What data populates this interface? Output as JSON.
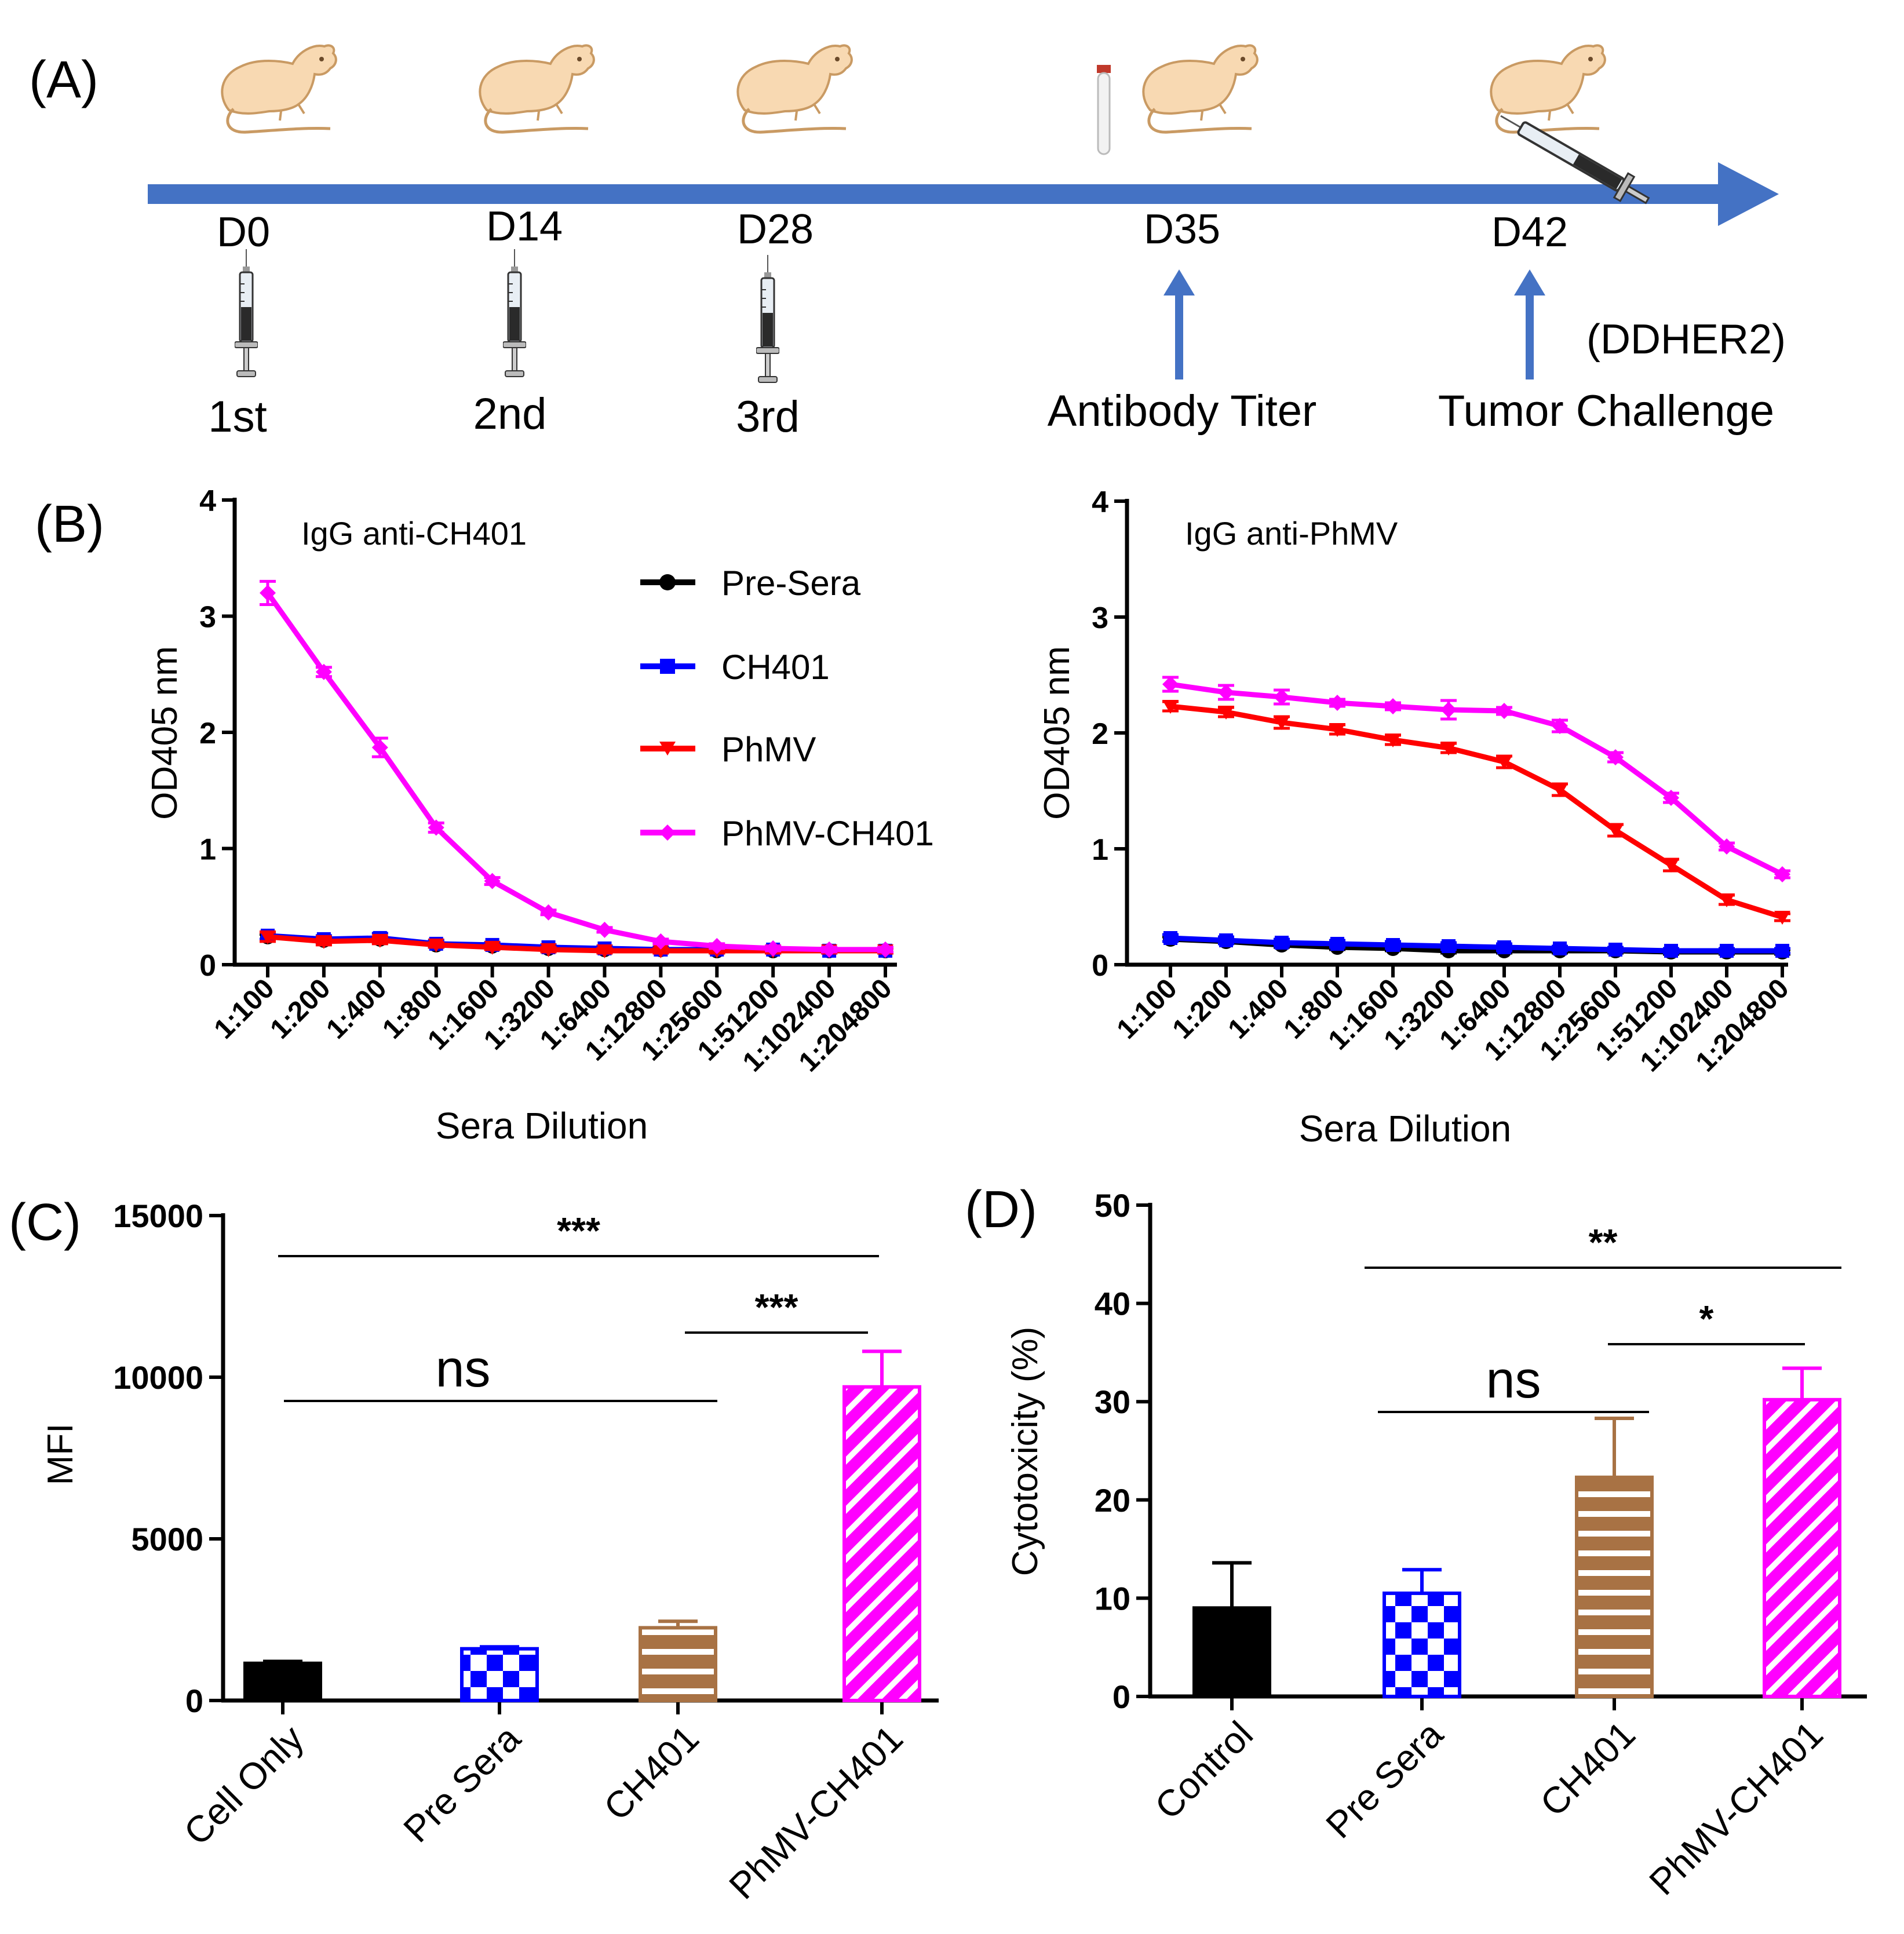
{
  "panel_a": {
    "label": "(A)",
    "days": [
      "D0",
      "D14",
      "D28",
      "D35",
      "D42"
    ],
    "doses": [
      "1st",
      "2nd",
      "3rd"
    ],
    "antibody_label": "Antibody Titer",
    "challenge_label": "Tumor Challenge",
    "challenge_model": "(DDHER2)"
  },
  "panel_b": {
    "label": "(B)",
    "legend": [
      "Pre-Sera",
      "CH401",
      "PhMV",
      "PhMV-CH401"
    ],
    "colors": {
      "Pre-Sera": "#000000",
      "CH401": "#0000ff",
      "PhMV": "#ff0000",
      "PhMV-CH401": "#ff00ff"
    }
  },
  "panel_c": {
    "label": "(C)"
  },
  "panel_d": {
    "label": "(D)"
  },
  "chart_data": [
    {
      "id": "b-left",
      "type": "line",
      "title": "IgG anti-CH401",
      "xlabel": "Sera Dilution",
      "ylabel": "OD405 nm",
      "ylim": [
        0,
        4
      ],
      "yticks": [
        "0",
        "1",
        "2",
        "3",
        "4"
      ],
      "categories": [
        "1:100",
        "1:200",
        "1:400",
        "1:800",
        "1:1600",
        "1:3200",
        "1:6400",
        "1:12800",
        "1:25600",
        "1:51200",
        "1:102400",
        "1:204800"
      ],
      "series": [
        {
          "name": "Pre-Sera",
          "values": [
            0.24,
            0.21,
            0.22,
            0.17,
            0.16,
            0.14,
            0.13,
            0.13,
            0.12,
            0.12,
            0.12,
            0.12
          ],
          "err": [
            0.02,
            0.02,
            0.02,
            0.02,
            0.02,
            0.02,
            0.02,
            0.02,
            0.02,
            0.02,
            0.02,
            0.02
          ]
        },
        {
          "name": "CH401",
          "values": [
            0.25,
            0.22,
            0.23,
            0.18,
            0.17,
            0.15,
            0.14,
            0.13,
            0.13,
            0.13,
            0.12,
            0.12
          ],
          "err": [
            0.03,
            0.03,
            0.04,
            0.03,
            0.02,
            0.02,
            0.02,
            0.02,
            0.02,
            0.02,
            0.02,
            0.02
          ]
        },
        {
          "name": "PhMV",
          "values": [
            0.24,
            0.2,
            0.21,
            0.17,
            0.15,
            0.13,
            0.12,
            0.12,
            0.12,
            0.12,
            0.12,
            0.12
          ],
          "err": [
            0.04,
            0.03,
            0.03,
            0.02,
            0.02,
            0.02,
            0.02,
            0.02,
            0.02,
            0.02,
            0.02,
            0.02
          ]
        },
        {
          "name": "PhMV-CH401",
          "values": [
            3.2,
            2.52,
            1.87,
            1.18,
            0.72,
            0.45,
            0.3,
            0.2,
            0.16,
            0.14,
            0.13,
            0.13
          ],
          "err": [
            0.1,
            0.04,
            0.08,
            0.04,
            0.03,
            0.02,
            0.02,
            0.02,
            0.02,
            0.02,
            0.02,
            0.02
          ]
        }
      ]
    },
    {
      "id": "b-right",
      "type": "line",
      "title": "IgG anti-PhMV",
      "xlabel": "Sera Dilution",
      "ylabel": "OD405 nm",
      "ylim": [
        0,
        4
      ],
      "yticks": [
        "0",
        "1",
        "2",
        "3",
        "4"
      ],
      "categories": [
        "1:100",
        "1:200",
        "1:400",
        "1:800",
        "1:1600",
        "1:3200",
        "1:6400",
        "1:12800",
        "1:25600",
        "1:51200",
        "1:102400",
        "1:204800"
      ],
      "series": [
        {
          "name": "Pre-Sera",
          "values": [
            0.22,
            0.2,
            0.17,
            0.15,
            0.14,
            0.12,
            0.12,
            0.12,
            0.12,
            0.11,
            0.11,
            0.11
          ],
          "err": [
            0.02,
            0.02,
            0.02,
            0.02,
            0.02,
            0.02,
            0.02,
            0.02,
            0.02,
            0.02,
            0.02,
            0.02
          ]
        },
        {
          "name": "CH401",
          "values": [
            0.23,
            0.21,
            0.19,
            0.18,
            0.17,
            0.16,
            0.15,
            0.14,
            0.13,
            0.12,
            0.12,
            0.12
          ],
          "err": [
            0.03,
            0.03,
            0.03,
            0.03,
            0.03,
            0.03,
            0.03,
            0.02,
            0.02,
            0.02,
            0.02,
            0.02
          ]
        },
        {
          "name": "PhMV",
          "values": [
            2.23,
            2.18,
            2.09,
            2.03,
            1.94,
            1.87,
            1.75,
            1.51,
            1.16,
            0.86,
            0.56,
            0.41
          ],
          "err": [
            0.04,
            0.04,
            0.05,
            0.04,
            0.04,
            0.04,
            0.05,
            0.05,
            0.05,
            0.05,
            0.04,
            0.03
          ]
        },
        {
          "name": "PhMV-CH401",
          "values": [
            2.42,
            2.35,
            2.31,
            2.26,
            2.23,
            2.2,
            2.19,
            2.06,
            1.79,
            1.44,
            1.02,
            0.78
          ],
          "err": [
            0.06,
            0.06,
            0.06,
            0.03,
            0.03,
            0.08,
            0.03,
            0.05,
            0.04,
            0.04,
            0.03,
            0.03
          ]
        }
      ]
    },
    {
      "id": "c",
      "type": "bar",
      "ylabel": "MFI",
      "ylim": [
        0,
        15000
      ],
      "yticks": [
        "0",
        "5000",
        "10000",
        "15000"
      ],
      "categories": [
        "Cell Only",
        "Pre Sera",
        "CH401",
        "PhMV-CH401"
      ],
      "values": [
        1150,
        1600,
        2250,
        9700
      ],
      "err": [
        60,
        60,
        200,
        1100
      ],
      "colors": [
        "#000000",
        "#0000ff",
        "#a87244",
        "#ff00ff"
      ],
      "fills": [
        "solid",
        "checker",
        "hstripe",
        "diag"
      ],
      "significance": [
        {
          "from": 0,
          "to": 3,
          "label": "***"
        },
        {
          "from": 2,
          "to": 3,
          "label": "***"
        },
        {
          "from": 0,
          "to": 2,
          "label": "ns"
        }
      ]
    },
    {
      "id": "d",
      "type": "bar",
      "ylabel": "Cytotoxicity (%)",
      "ylim": [
        0,
        50
      ],
      "yticks": [
        "0",
        "10",
        "20",
        "30",
        "40",
        "50"
      ],
      "categories": [
        "Control",
        "Pre Sera",
        "CH401",
        "PhMV-CH401"
      ],
      "values": [
        9,
        10.5,
        22.3,
        30.2
      ],
      "err": [
        4.6,
        2.4,
        6.0,
        3.2
      ],
      "colors": [
        "#000000",
        "#0000ff",
        "#a87244",
        "#ff00ff"
      ],
      "fills": [
        "solid",
        "checker",
        "hstripe",
        "diag"
      ],
      "significance": [
        {
          "from": 1,
          "to": 3,
          "label": "**"
        },
        {
          "from": 2,
          "to": 3,
          "label": "*"
        },
        {
          "from": 1,
          "to": 2,
          "label": "ns"
        }
      ]
    }
  ]
}
